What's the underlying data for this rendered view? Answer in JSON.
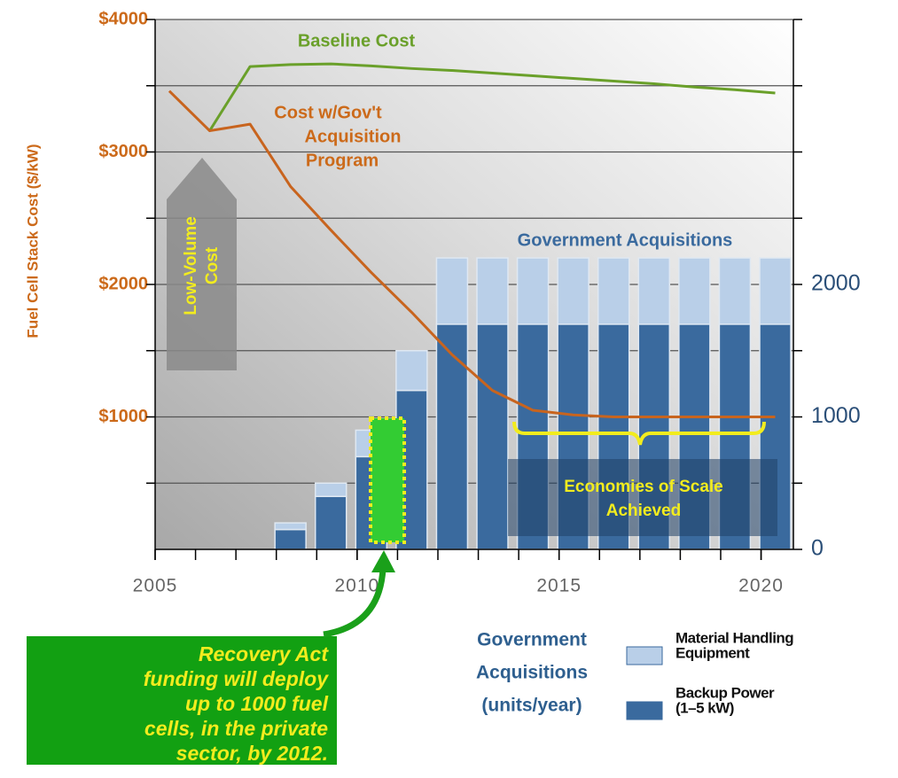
{
  "chart_data": {
    "type": "bar",
    "ylabel": "Fuel Cell Stack Cost ($/kW)",
    "x": [
      2005,
      2006,
      2007,
      2008,
      2009,
      2010,
      2011,
      2012,
      2013,
      2014,
      2015,
      2016,
      2017,
      2018,
      2019,
      2020
    ],
    "series": [
      {
        "name": "Baseline Cost",
        "type": "line",
        "color": "#6aa02a",
        "values": [
          null,
          3160,
          3645,
          3660,
          3665,
          3650,
          3630,
          3615,
          3595,
          3575,
          3555,
          3535,
          3515,
          3490,
          3470,
          3445
        ]
      },
      {
        "name": [
          "Cost w/Gov't",
          "Acquisition",
          "Program"
        ],
        "type": "line",
        "color": "#c8641e",
        "values": [
          3460,
          3160,
          3210,
          2740,
          2410,
          2090,
          1790,
          1470,
          1200,
          1050,
          1015,
          1000,
          1000,
          1000,
          1000,
          1000
        ]
      },
      {
        "name": [
          "Backup Power",
          "(1–5  kW)"
        ],
        "type": "bar",
        "axis": "y2",
        "color": "#3a6a9e",
        "values": [
          null,
          null,
          null,
          150,
          400,
          700,
          1200,
          1700,
          1700,
          1700,
          1700,
          1700,
          1700,
          1700,
          1700,
          1700
        ]
      },
      {
        "name": [
          "Material Handling",
          "Equipment"
        ],
        "type": "bar",
        "axis": "y2",
        "color": "#b9cfe8",
        "values": [
          null,
          null,
          null,
          50,
          100,
          200,
          300,
          500,
          500,
          500,
          500,
          500,
          500,
          500,
          500,
          500
        ]
      }
    ],
    "legend_title": [
      "Government",
      "Acquisitions",
      "(units/year)"
    ],
    "annotations": {
      "acquisitions": "Government Acquisitions",
      "low_volume": [
        "Low-Volume",
        "Cost"
      ],
      "economies": [
        "Economies of Scale",
        "Achieved"
      ],
      "recovery": [
        "Recovery Act",
        "funding will deploy",
        "up to 1000 fuel",
        "cells, in the private",
        "sector,  by 2012."
      ]
    },
    "xlim": [
      2005,
      2020.8
    ],
    "xticks": [
      2005,
      2010,
      2015,
      2020
    ],
    "xminorticks": [
      2005,
      2006,
      2007,
      2008,
      2009,
      2010,
      2011,
      2012,
      2013,
      2014,
      2015,
      2016,
      2017,
      2018,
      2019,
      2020
    ],
    "ylim": [
      0,
      4000
    ],
    "yticks": [
      {
        "value": 1000,
        "label": "$1000"
      },
      {
        "value": 2000,
        "label": "$2000"
      },
      {
        "value": 3000,
        "label": "$3000"
      },
      {
        "value": 4000,
        "label": "$4000"
      }
    ],
    "yminorticks": [
      500,
      1500,
      2500,
      3500
    ],
    "y2lim": [
      0,
      4000
    ],
    "y2ticks": [
      0,
      1000,
      2000
    ],
    "y2minorticks": [
      500,
      1500,
      2500,
      3000,
      3500,
      4000
    ],
    "grid": true
  }
}
